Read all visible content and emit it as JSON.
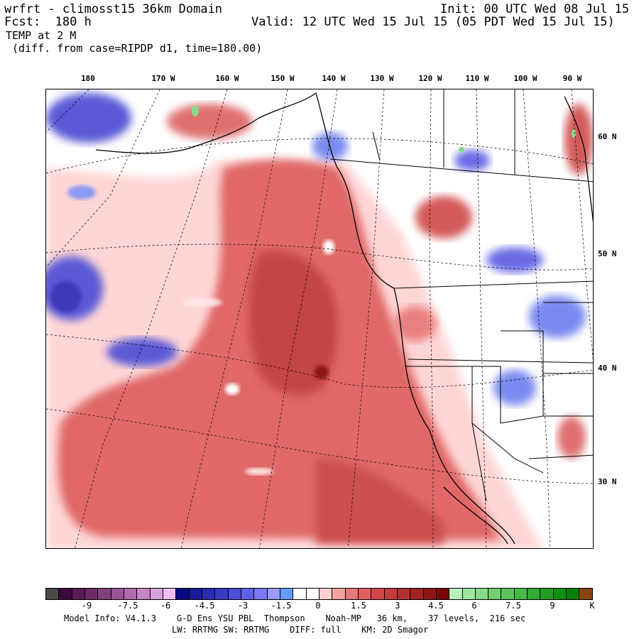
{
  "header": {
    "title": "wrfrt - climosst15 36km Domain",
    "init": "Init: 00 UTC Wed 08 Jul 15",
    "fcst": "Fcst:  180 h",
    "valid": "Valid: 12 UTC Wed 15 Jul 15 (05 PDT Wed 15 Jul 15)",
    "field": "TEMP at 2 M",
    "diff": " (diff. from case=RIPDP d1, time=180.00)"
  },
  "map": {
    "lon_labels": [
      "180",
      "170 W",
      "160 W",
      "150 W",
      "140 W",
      "130 W",
      "120 W",
      "110 W",
      "100 W",
      "90 W"
    ],
    "lat_labels": [
      "60 N",
      "50 N",
      "40 N",
      "30 N"
    ],
    "projection": "lambert-conformal",
    "field_pattern": "warm anomaly over NE Pacific, mixed small-scale anomalies over western North America"
  },
  "colorbar": {
    "colors": [
      "#4a4a4a",
      "#3d0a3d",
      "#5a1a55",
      "#6e2a68",
      "#84407e",
      "#9a5595",
      "#b06cad",
      "#c585c4",
      "#d9a1d9",
      "#f2bdf2",
      "#0a0a80",
      "#1a1a99",
      "#2a2ab0",
      "#3a3ac4",
      "#4d4dd6",
      "#6060e6",
      "#7a7af2",
      "#9a9af7",
      "#6699ff",
      "#ffffff",
      "#ffffff",
      "#ffd0d0",
      "#f2a0a0",
      "#e67a7a",
      "#e06060",
      "#d24848",
      "#c43c3c",
      "#b33030",
      "#a02222",
      "#8c1414",
      "#780808",
      "#b8f0b8",
      "#a0e6a0",
      "#88db88",
      "#70cf70",
      "#5cc45c",
      "#48b848",
      "#34ab34",
      "#229e22",
      "#128f12",
      "#058005",
      "#8b4513"
    ],
    "tick_labels": [
      "-9",
      "-7.5",
      "-6",
      "-4.5",
      "-3",
      "-1.5",
      "0",
      "1.5",
      "3",
      "4.5",
      "6",
      "7.5",
      "9",
      "K"
    ]
  },
  "footer": {
    "line1": "Model Info: V4.1.3    G-D Ens YSU PBL  Thompson    Noah-MP   36 km,    37 levels,  216 sec",
    "line2": "LW: RRTMG SW: RRTMG    DIFF: full    KM: 2D Smagor"
  }
}
